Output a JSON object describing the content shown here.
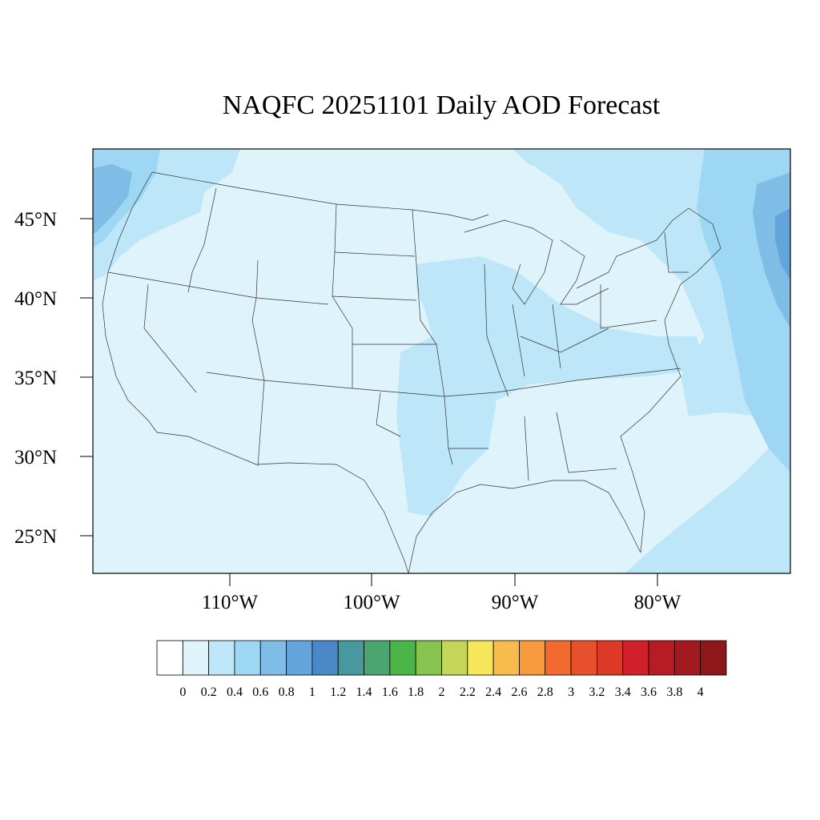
{
  "title": "NAQFC 20251101 Daily AOD Forecast",
  "lat_labels": [
    "45°N",
    "40°N",
    "35°N",
    "30°N",
    "25°N"
  ],
  "lon_labels": [
    "110°W",
    "100°W",
    "90°W",
    "80°W"
  ],
  "colorbar": {
    "colors": [
      "#ffffff",
      "#dff3fb",
      "#bde6f8",
      "#9dd7f4",
      "#80bde6",
      "#63a4da",
      "#4a88c7",
      "#48999d",
      "#4aa56f",
      "#4bb547",
      "#87c44f",
      "#c4d657",
      "#f6e65a",
      "#f7bc4d",
      "#f79a3e",
      "#f26a2d",
      "#e6502b",
      "#dc3a27",
      "#d12029",
      "#b71c24",
      "#a21a20",
      "#8e171b"
    ],
    "labels": [
      "0",
      "0.2",
      "0.4",
      "0.6",
      "0.8",
      "1",
      "1.2",
      "1.4",
      "1.6",
      "1.8",
      "2",
      "2.2",
      "2.4",
      "2.6",
      "2.8",
      "3",
      "3.2",
      "3.4",
      "3.6",
      "3.8",
      "4"
    ]
  },
  "map": {
    "background_color": "#dff3fb",
    "band_color": "#bde6f8",
    "mid_color": "#9dd7f4",
    "high_color": "#80bde6",
    "peak_color": "#63a4da"
  }
}
